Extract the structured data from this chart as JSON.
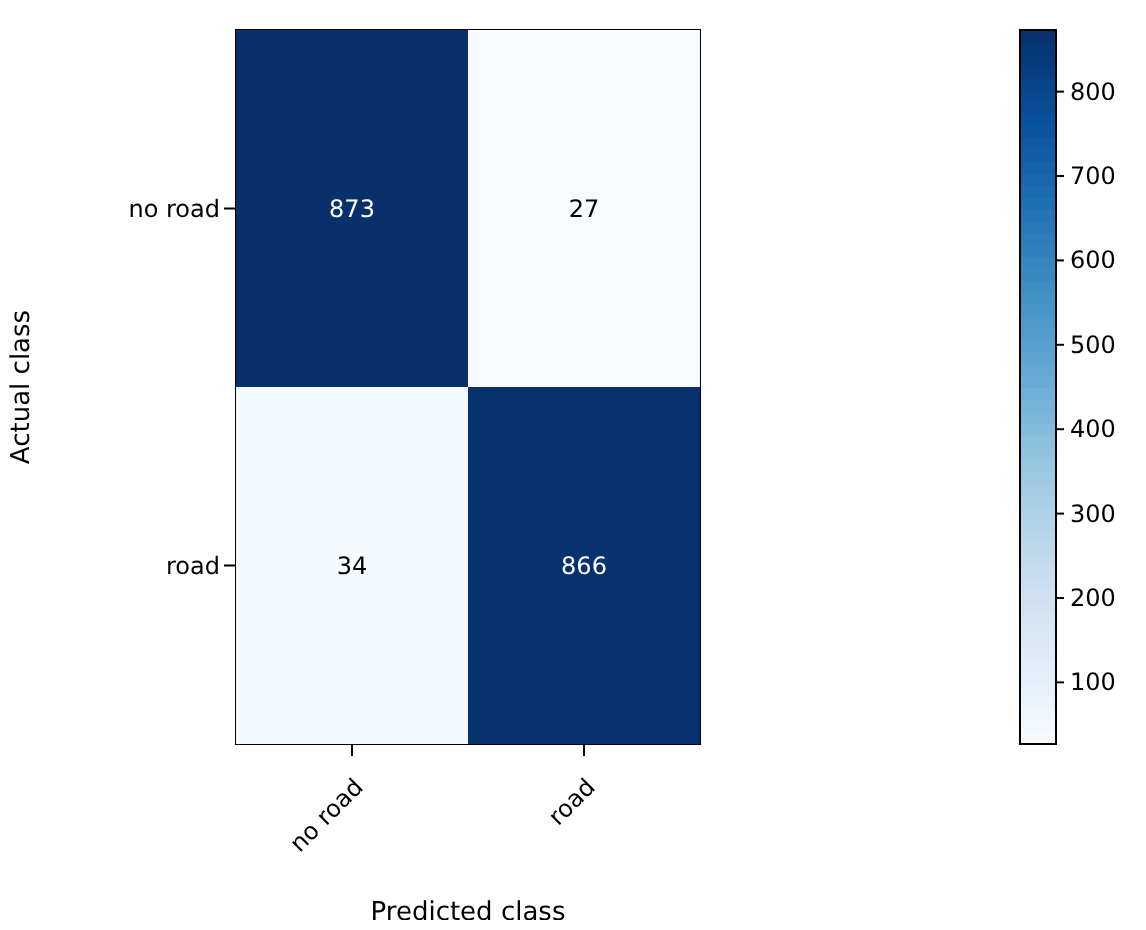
{
  "chart_data": {
    "type": "heatmap",
    "xlabel": "Predicted class",
    "ylabel": "Actual class",
    "categories": [
      "no road",
      "road"
    ],
    "y_categories": [
      "no road",
      "road"
    ],
    "cells": [
      [
        873,
        27
      ],
      [
        34,
        866
      ]
    ],
    "clim": [
      27,
      873
    ],
    "cticks": [
      100,
      200,
      300,
      400,
      500,
      600,
      700,
      800
    ],
    "data_labels": true
  }
}
